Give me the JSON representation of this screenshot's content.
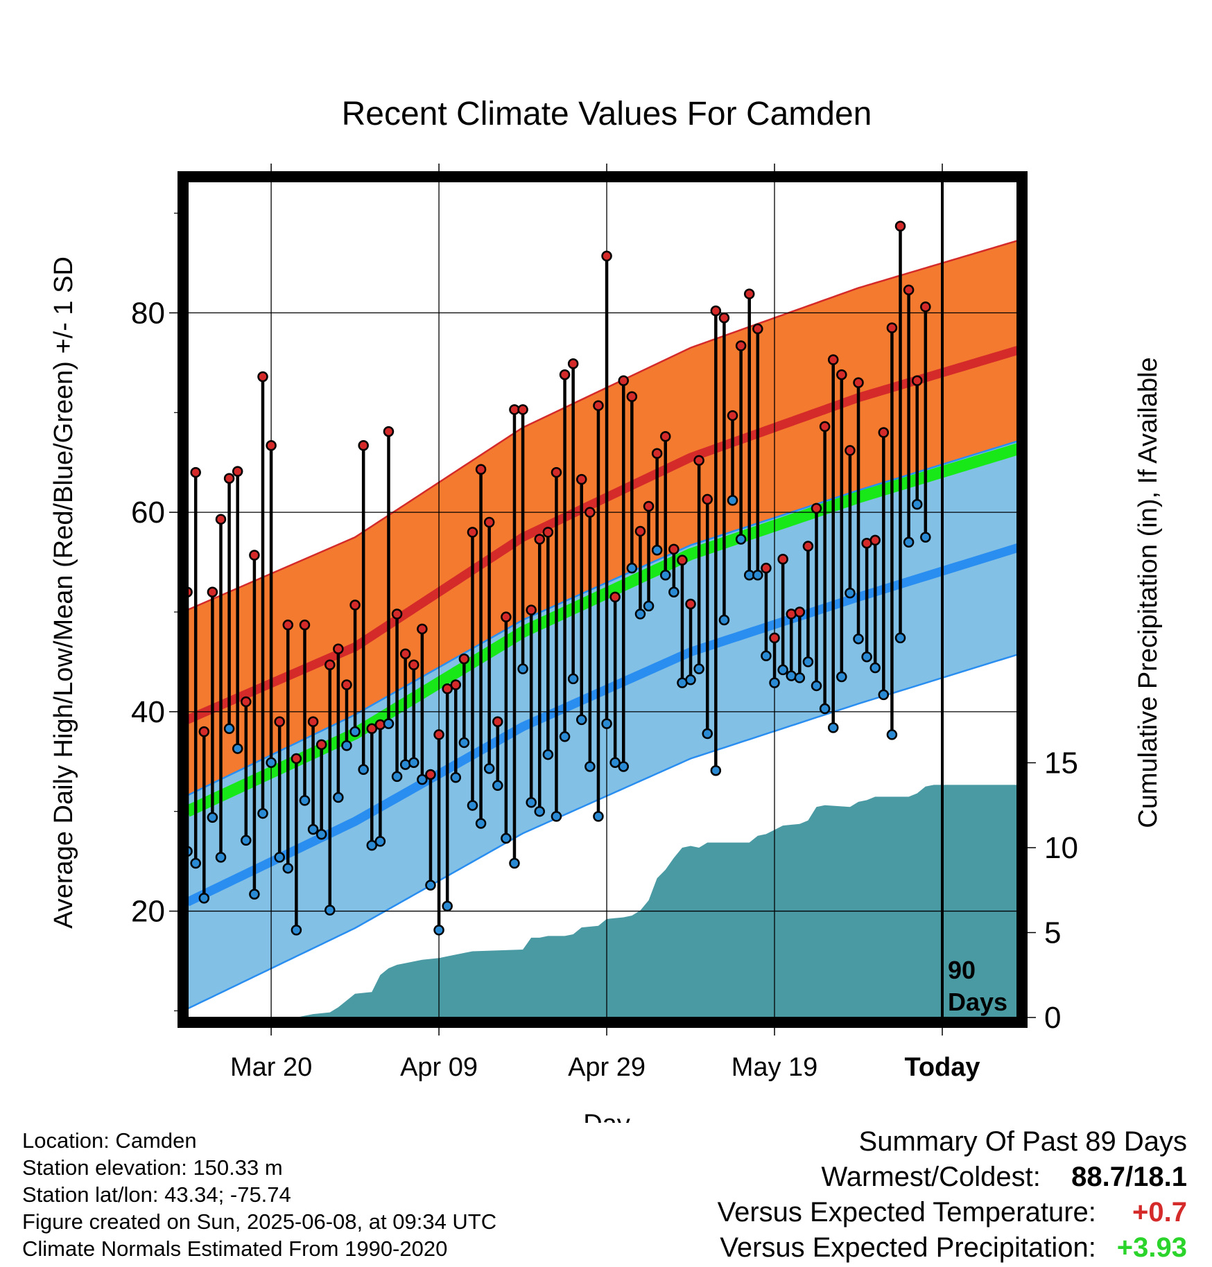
{
  "chart_data": {
    "type": "line",
    "title": "Recent Climate Values For Camden",
    "xlabel": "Day",
    "ylabel": "Average Daily High/Low/Mean (Red/Blue/Green) +/- 1 SD",
    "y2label": "Cumulative Precipitation (in), If Available",
    "x_tick_labels": [
      "Mar 20",
      "Apr 09",
      "Apr 29",
      "May 19",
      "Today"
    ],
    "x_tick_days": [
      10,
      30,
      50,
      70,
      90
    ],
    "x_range_days": [
      -1,
      100
    ],
    "y_ticks": [
      20,
      40,
      60,
      80
    ],
    "y_range": [
      8.5,
      94
    ],
    "y2_ticks": [
      0,
      5,
      10,
      15
    ],
    "today_marker_label": [
      "90",
      "Days"
    ],
    "normals": {
      "high_mean": [
        [
          0,
          39.2
        ],
        [
          20,
          46.5
        ],
        [
          40,
          57.5
        ],
        [
          60,
          65.5
        ],
        [
          80,
          71.5
        ],
        [
          100,
          76.5
        ]
      ],
      "high_sd": 11,
      "low_mean": [
        [
          0,
          20.9
        ],
        [
          20,
          29.0
        ],
        [
          40,
          38.5
        ],
        [
          60,
          46.0
        ],
        [
          80,
          51.5
        ],
        [
          100,
          56.7
        ]
      ],
      "low_sd": 10.7,
      "mean_mean": [
        [
          0,
          30.0
        ],
        [
          20,
          37.8
        ],
        [
          40,
          48.0
        ],
        [
          60,
          55.8
        ],
        [
          80,
          61.5
        ],
        [
          100,
          66.6
        ]
      ]
    },
    "series": [
      {
        "name": "High",
        "color": "#d42a2a",
        "values": [
          52.0,
          64.0,
          38.0,
          52.0,
          59.3,
          63.4,
          64.1,
          41.0,
          55.7,
          73.6,
          66.7,
          39.0,
          48.7,
          35.3,
          48.7,
          39.0,
          36.7,
          44.7,
          46.3,
          42.7,
          50.7,
          66.7,
          38.3,
          38.7,
          68.1,
          49.8,
          45.8,
          44.7,
          48.3,
          33.7,
          37.7,
          42.3,
          42.7,
          45.3,
          58.0,
          64.3,
          59.0,
          39.0,
          49.5,
          70.3,
          70.3,
          50.2,
          57.3,
          58.0,
          64.0,
          73.8,
          74.9,
          63.3,
          60.0,
          70.7,
          85.7,
          51.5,
          73.2,
          71.6,
          58.1,
          60.6,
          65.9,
          67.6,
          56.3,
          55.2,
          50.8,
          65.2,
          61.3,
          80.2,
          79.5,
          69.7,
          76.7,
          81.9,
          78.4,
          54.4,
          47.4,
          55.3,
          49.8,
          50.0,
          56.6,
          60.4,
          68.6,
          75.3,
          73.8,
          66.2,
          73.0,
          56.9,
          57.2,
          68.0,
          78.5,
          88.7,
          82.3,
          73.2,
          80.6
        ]
      },
      {
        "name": "Low",
        "color": "#2a8ad4",
        "values": [
          26.0,
          24.8,
          21.3,
          29.4,
          25.4,
          38.3,
          36.3,
          27.1,
          21.7,
          29.8,
          34.9,
          25.4,
          24.3,
          18.1,
          31.1,
          28.2,
          27.7,
          20.1,
          31.4,
          36.6,
          38.0,
          34.2,
          26.6,
          27.0,
          38.8,
          33.5,
          34.7,
          34.9,
          33.2,
          22.6,
          18.1,
          20.5,
          33.4,
          36.9,
          30.6,
          28.8,
          34.3,
          32.6,
          27.3,
          24.8,
          44.3,
          30.9,
          30.0,
          35.7,
          29.5,
          37.5,
          43.3,
          39.2,
          34.5,
          29.5,
          38.8,
          34.9,
          34.5,
          54.4,
          49.8,
          50.6,
          56.2,
          53.7,
          52.0,
          42.9,
          43.2,
          44.3,
          37.8,
          34.1,
          49.2,
          61.2,
          57.3,
          53.7,
          53.7,
          45.6,
          42.9,
          44.2,
          43.6,
          43.4,
          45.0,
          42.6,
          40.3,
          38.4,
          43.5,
          51.9,
          47.3,
          45.5,
          44.4,
          41.7,
          37.7,
          47.4,
          57.0,
          60.8,
          57.5
        ]
      }
    ],
    "precipitation_cumulative": [
      [
        0,
        0
      ],
      [
        13,
        0
      ],
      [
        14,
        0.1
      ],
      [
        15,
        0.2
      ],
      [
        17,
        0.3
      ],
      [
        18,
        0.6
      ],
      [
        19,
        1.0
      ],
      [
        20,
        1.4
      ],
      [
        22,
        1.5
      ],
      [
        23,
        2.5
      ],
      [
        24,
        2.9
      ],
      [
        25,
        3.1
      ],
      [
        26,
        3.2
      ],
      [
        28,
        3.4
      ],
      [
        30,
        3.5
      ],
      [
        31,
        3.6
      ],
      [
        33,
        3.8
      ],
      [
        34,
        3.9
      ],
      [
        40,
        4.0
      ],
      [
        41,
        4.7
      ],
      [
        42,
        4.7
      ],
      [
        43,
        4.8
      ],
      [
        45,
        4.8
      ],
      [
        46,
        4.9
      ],
      [
        47,
        5.3
      ],
      [
        49,
        5.4
      ],
      [
        50,
        5.8
      ],
      [
        52,
        5.9
      ],
      [
        53,
        6.0
      ],
      [
        54,
        6.3
      ],
      [
        55,
        6.9
      ],
      [
        56,
        8.2
      ],
      [
        57,
        8.7
      ],
      [
        58,
        9.4
      ],
      [
        59,
        10.0
      ],
      [
        60,
        10.1
      ],
      [
        61,
        10.0
      ],
      [
        62,
        10.3
      ],
      [
        67,
        10.3
      ],
      [
        68,
        10.7
      ],
      [
        69,
        10.8
      ],
      [
        71,
        11.3
      ],
      [
        73,
        11.4
      ],
      [
        74,
        11.6
      ],
      [
        75,
        12.4
      ],
      [
        76,
        12.5
      ],
      [
        79,
        12.4
      ],
      [
        80,
        12.7
      ],
      [
        81,
        12.8
      ],
      [
        82,
        13.0
      ],
      [
        86,
        13.0
      ],
      [
        87,
        13.2
      ],
      [
        88,
        13.6
      ],
      [
        89,
        13.7
      ],
      [
        100,
        13.7
      ]
    ]
  },
  "info": {
    "location": "Location: Camden",
    "elevation": "Station elevation: 150.33 m",
    "latlon": "Station lat/lon: 43.34; -75.74",
    "created": "Figure created on Sun, 2025-06-08, at 09:34 UTC",
    "normals": "Climate Normals Estimated From 1990-2020"
  },
  "summary": {
    "title": "Summary Of Past 89 Days",
    "warmest_label": "Warmest/Coldest:",
    "warmest_value": "88.7/18.1",
    "temp_label": "Versus Expected Temperature:",
    "temp_value": "+0.7",
    "prec_label": "Versus Expected Precipitation:",
    "prec_value": "+3.93"
  },
  "colors": {
    "high_band": "#f37a2e",
    "high_line": "#d42a2a",
    "low_band": "#82c0e6",
    "low_line": "#2a8ef0",
    "mean_line": "#18e818",
    "precip": "#4a9aa4"
  }
}
